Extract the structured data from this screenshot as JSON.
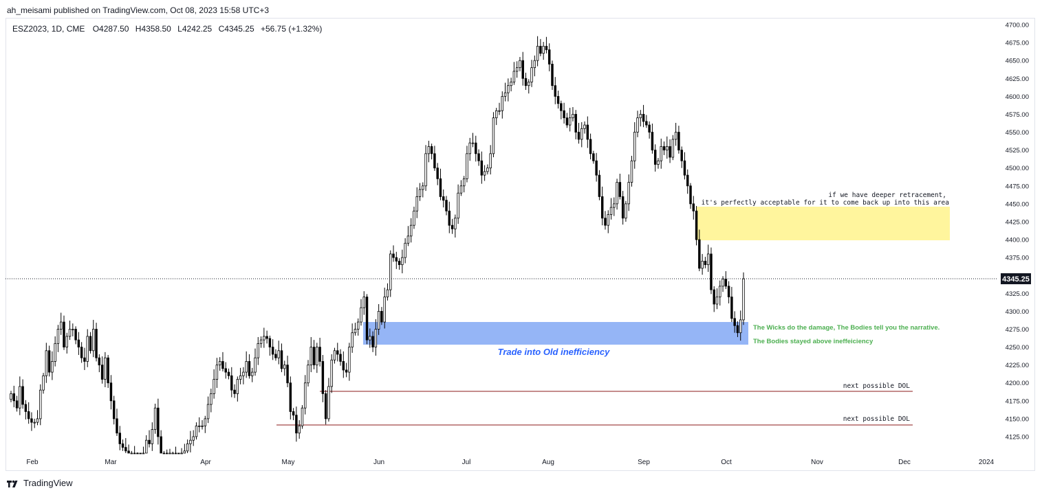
{
  "header": {
    "publish_line": "ah_meisami published on TradingView.com, Oct 08, 2023 15:58 UTC+3"
  },
  "footer": {
    "brand": "TradingView"
  },
  "legend": {
    "symbol": "ESZ2023, 1D, CME",
    "open": "O4287.50",
    "high": "H4358.50",
    "low": "L4242.25",
    "close": "C4345.25",
    "change": "+56.75 (+1.32%)"
  },
  "colors": {
    "up_body": "#ffffff",
    "down_body": "#000000",
    "wick": "#000000",
    "fvg_zone": "#fff59d",
    "demand_zone": "#82a8f5",
    "dol_line": "#8b1a1a",
    "green_text": "#4caf50",
    "blue_text": "#2962ff"
  },
  "chart_data": {
    "type": "candlestick",
    "symbol": "ESZ2023",
    "timeframe": "1D",
    "y_axis": {
      "ticks": [
        "4700.00",
        "4675.00",
        "4650.00",
        "4625.00",
        "4600.00",
        "4575.00",
        "4550.00",
        "4525.00",
        "4500.00",
        "4475.00",
        "4450.00",
        "4425.00",
        "4400.00",
        "4375.00",
        "4350.00",
        "4325.00",
        "4300.00",
        "4275.00",
        "4250.00",
        "4225.00",
        "4200.00",
        "4175.00",
        "4150.00",
        "4125.00"
      ],
      "range": [
        4100,
        4705
      ]
    },
    "x_axis": {
      "ticks": [
        "Feb",
        "Mar",
        "Apr",
        "May",
        "Jun",
        "Jul",
        "Aug",
        "Sep",
        "Oct",
        "Nov",
        "Dec",
        "2024"
      ]
    },
    "last_price": "4345.25",
    "closes": [
      4185,
      4175,
      4165,
      4195,
      4170,
      4160,
      4150,
      4145,
      4145,
      4150,
      4190,
      4210,
      4245,
      4215,
      4230,
      4255,
      4275,
      4285,
      4250,
      4265,
      4275,
      4275,
      4260,
      4250,
      4235,
      4230,
      4265,
      4245,
      4275,
      4235,
      4225,
      4205,
      4235,
      4200,
      4175,
      4150,
      4130,
      4115,
      4110,
      4105,
      4100,
      4100,
      4095,
      4090,
      4085,
      4100,
      4120,
      4115,
      4135,
      4165,
      4125,
      4100,
      4095,
      4080,
      4100,
      4100,
      4090,
      4085,
      4095,
      4105,
      4115,
      4120,
      4125,
      4140,
      4140,
      4140,
      4150,
      4170,
      4185,
      4205,
      4225,
      4230,
      4220,
      4215,
      4210,
      4190,
      4185,
      4205,
      4210,
      4215,
      4230,
      4210,
      4215,
      4235,
      4255,
      4260,
      4265,
      4262,
      4250,
      4240,
      4235,
      4245,
      4220,
      4225,
      4200,
      4160,
      4155,
      4130,
      4140,
      4165,
      4200,
      4225,
      4250,
      4225,
      4250,
      4230,
      4185,
      4150,
      4195,
      4232,
      4245,
      4240,
      4230,
      4218,
      4215,
      4250,
      4270,
      4275,
      4285,
      4305,
      4320,
      4260,
      4265,
      4250,
      4275,
      4300,
      4285,
      4320,
      4330,
      4380,
      4375,
      4370,
      4365,
      4375,
      4395,
      4405,
      4420,
      4440,
      4460,
      4470,
      4475,
      4520,
      4530,
      4520,
      4500,
      4485,
      4460,
      4455,
      4440,
      4420,
      4415,
      4430,
      4465,
      4475,
      4485,
      4520,
      4535,
      4535,
      4520,
      4510,
      4490,
      4495,
      4500,
      4520,
      4570,
      4580,
      4580,
      4600,
      4605,
      4615,
      4620,
      4635,
      4640,
      4650,
      4625,
      4615,
      4620,
      4640,
      4650,
      4670,
      4660,
      4670,
      4665,
      4645,
      4615,
      4600,
      4590,
      4580,
      4570,
      4560,
      4570,
      4575,
      4550,
      4540,
      4555,
      4560,
      4540,
      4520,
      4510,
      4490,
      4460,
      4430,
      4420,
      4435,
      4445,
      4450,
      4480,
      4460,
      4430,
      4450,
      4480,
      4510,
      4550,
      4570,
      4575,
      4565,
      4560,
      4550,
      4525,
      4505,
      4510,
      4530,
      4525,
      4530,
      4515,
      4540,
      4550,
      4525,
      4510,
      4490,
      4475,
      4450,
      4440,
      4400,
      4360,
      4370,
      4365,
      4380,
      4330,
      4310,
      4320,
      4335,
      4345,
      4335,
      4320,
      4290,
      4280,
      4270,
      4288,
      4345.25
    ]
  },
  "annotations": {
    "retracement_line1": "if we have deeper retracement,",
    "retracement_line2": "it's perfectly acceptable for it to come back up into this area",
    "wicks_text": "The Wicks do the damage, The Bodies tell you the narrative.",
    "bodies_text": "The Bodies stayed above ineffeiciency",
    "old_inefficiency": "Trade into Old inefficiency",
    "dol_1": "next possible DOL",
    "dol_2": "next possible DOL"
  }
}
